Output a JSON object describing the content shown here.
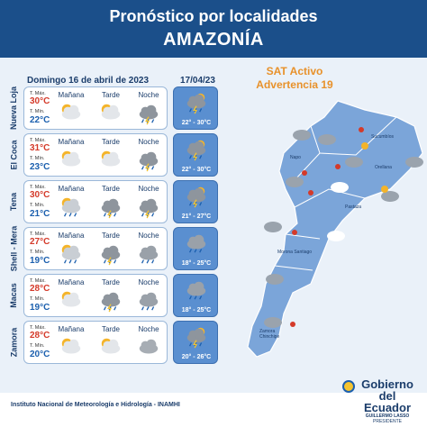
{
  "header": {
    "title": "Pronóstico por localidades",
    "region": "AMAZONÍA"
  },
  "date_main": "Domingo 16 de abril de 2023",
  "date_next": "17/04/23",
  "sat": {
    "line1": "SAT Activo",
    "line2": "Advertencia 19"
  },
  "columns": [
    "Mañana",
    "Tarde",
    "Noche"
  ],
  "labels": {
    "max": "T. Máx.",
    "min": "T. Mín."
  },
  "locations": [
    {
      "name": "Nueva Loja",
      "max": "30°C",
      "min": "22°C",
      "icons": [
        "sun-cloud-icon",
        "sun-cloud-icon",
        "storm-icon"
      ],
      "next_icon": "storm-sun-icon",
      "next_range": "22° - 30°C"
    },
    {
      "name": "El Coca",
      "max": "31°C",
      "min": "23°C",
      "icons": [
        "sun-cloud-icon",
        "sun-cloud-icon",
        "storm-icon"
      ],
      "next_icon": "storm-sun-icon",
      "next_range": "22° - 30°C"
    },
    {
      "name": "Tena",
      "max": "30°C",
      "min": "21°C",
      "icons": [
        "rain-sun-icon",
        "storm-icon",
        "storm-icon"
      ],
      "next_icon": "storm-sun-icon",
      "next_range": "21° - 27°C"
    },
    {
      "name": "Shell - Mera",
      "max": "27°C",
      "min": "19°C",
      "icons": [
        "rain-sun-icon",
        "storm-icon",
        "rain-icon"
      ],
      "next_icon": "rain-icon",
      "next_range": "18° - 25°C"
    },
    {
      "name": "Macas",
      "max": "28°C",
      "min": "19°C",
      "icons": [
        "sun-cloud-icon",
        "storm-icon",
        "rain-icon"
      ],
      "next_icon": "rain-icon",
      "next_range": "18° - 25°C"
    },
    {
      "name": "Zamora",
      "max": "28°C",
      "min": "20°C",
      "icons": [
        "sun-cloud-icon",
        "sun-cloud-icon",
        "cloud-icon"
      ],
      "next_icon": "storm-sun-icon",
      "next_range": "20° - 26°C"
    }
  ],
  "map": {
    "places": [
      "Sucumbíos",
      "Napo",
      "Orellana",
      "Pastaza",
      "Morona Santiago",
      "Zamora Chinchipe"
    ]
  },
  "footer": "Instituto Nacional de Meteorología e Hidrología - INAMHI",
  "logo": {
    "line1": "Gobierno",
    "line2": "del Ecuador",
    "line3": "GUILLERMO LASSO",
    "line4": "PRESIDENTE"
  }
}
